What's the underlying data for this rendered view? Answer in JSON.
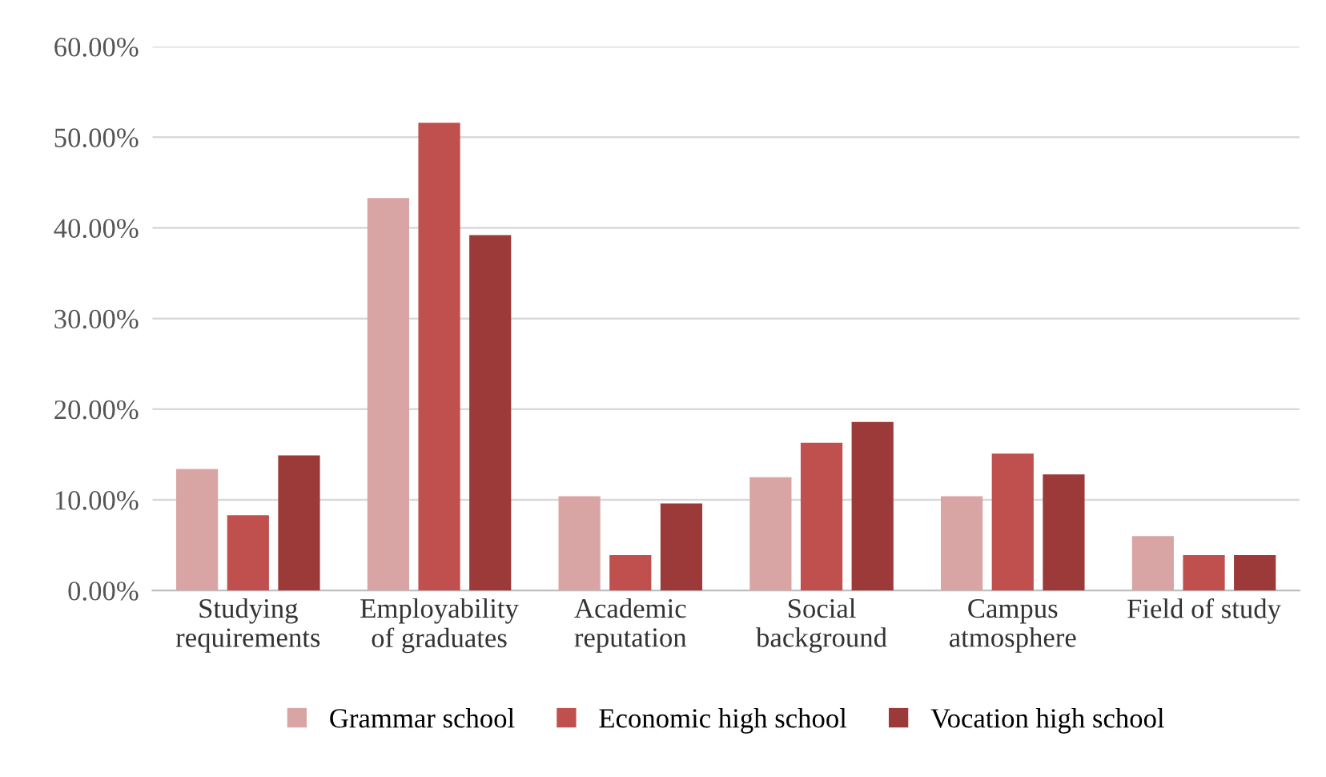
{
  "chart_data": {
    "type": "bar",
    "categories": [
      "Studying\nrequirements",
      "Employability\nof graduates",
      "Academic\nreputation",
      "Social\nbackground",
      "Campus\natmosphere",
      "Field of study"
    ],
    "series": [
      {
        "name": "Grammar school",
        "color": "#d9a5a4",
        "values": [
          13.4,
          43.3,
          10.4,
          12.5,
          10.4,
          6.0
        ]
      },
      {
        "name": "Economic high school",
        "color": "#c0504d",
        "values": [
          8.3,
          51.6,
          3.9,
          16.3,
          15.1,
          3.9
        ]
      },
      {
        "name": "Vocation high school",
        "color": "#9b3a38",
        "values": [
          14.9,
          39.2,
          9.6,
          18.6,
          12.8,
          3.9
        ]
      }
    ],
    "ylim": [
      0,
      60
    ],
    "yticks": [
      {
        "value": 0,
        "label": "0.00%"
      },
      {
        "value": 10,
        "label": "10.00%"
      },
      {
        "value": 20,
        "label": "20.00%"
      },
      {
        "value": 30,
        "label": "30.00%"
      },
      {
        "value": 40,
        "label": "40.00%"
      },
      {
        "value": 50,
        "label": "50.00%"
      },
      {
        "value": 60,
        "label": "60.00%"
      }
    ],
    "grid": "y",
    "legend": "bottom"
  }
}
